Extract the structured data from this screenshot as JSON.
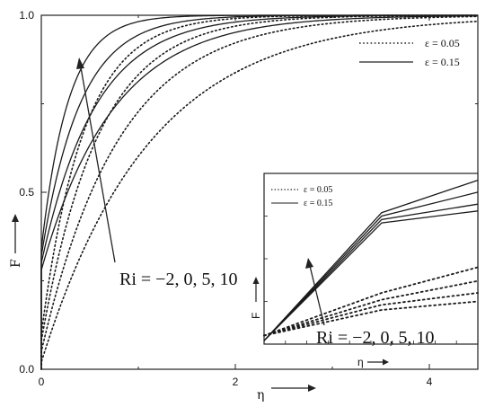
{
  "chart_data": [
    {
      "type": "line",
      "xlabel": "η",
      "ylabel": "F",
      "xlim": [
        0,
        4.5
      ],
      "ylim": [
        0,
        1.0
      ],
      "xticks": [
        "0",
        "2",
        "4"
      ],
      "yticks": [
        "0.0",
        "0.5",
        "1.0"
      ],
      "legend": [
        {
          "name": "ε = 0.05",
          "style": "dotted"
        },
        {
          "name": "ε = 0.15",
          "style": "solid"
        }
      ],
      "legend_position": "top-right",
      "annotation": "Ri = −2, 0, 5, 10",
      "curve_model": "F = 1 - (1 - F0) * exp(-k * eta)",
      "series": [
        {
          "name": "ε = 0.05",
          "style": "dotted",
          "Ri": -2,
          "F0": 0.02,
          "k": 0.9
        },
        {
          "name": "ε = 0.05",
          "style": "dotted",
          "Ri": 0,
          "F0": 0.05,
          "k": 1.25
        },
        {
          "name": "ε = 0.05",
          "style": "dotted",
          "Ri": 5,
          "F0": 0.08,
          "k": 1.7
        },
        {
          "name": "ε = 0.05",
          "style": "dotted",
          "Ri": 10,
          "F0": 0.1,
          "k": 2.3
        },
        {
          "name": "ε = 0.15",
          "style": "solid",
          "Ri": -2,
          "F0": 0.28,
          "k": 1.35
        },
        {
          "name": "ε = 0.15",
          "style": "solid",
          "Ri": 0,
          "F0": 0.3,
          "k": 1.8
        },
        {
          "name": "ε = 0.15",
          "style": "solid",
          "Ri": 5,
          "F0": 0.32,
          "k": 2.5
        },
        {
          "name": "ε = 0.15",
          "style": "solid",
          "Ri": 10,
          "F0": 0.34,
          "k": 3.6
        }
      ]
    },
    {
      "type": "line",
      "xlabel": "η",
      "ylabel": "F",
      "legend": [
        {
          "name": "ε = 0.05",
          "style": "dotted"
        },
        {
          "name": "ε = 0.15",
          "style": "solid"
        }
      ],
      "legend_position": "top-left",
      "annotation": "Ri = −2, 0, 5, 10",
      "xlim": [
        0,
        1
      ],
      "ylim": [
        0,
        1
      ],
      "series": [
        {
          "name": "ε = 0.15",
          "style": "solid",
          "x": [
            0,
            0.55,
            1
          ],
          "y": [
            0.02,
            0.77,
            0.96
          ]
        },
        {
          "name": "ε = 0.15",
          "style": "solid",
          "x": [
            0,
            0.55,
            1
          ],
          "y": [
            0.02,
            0.75,
            0.89
          ]
        },
        {
          "name": "ε = 0.15",
          "style": "solid",
          "x": [
            0,
            0.55,
            1
          ],
          "y": [
            0.02,
            0.73,
            0.82
          ]
        },
        {
          "name": "ε = 0.15",
          "style": "solid",
          "x": [
            0,
            0.55,
            1
          ],
          "y": [
            0.02,
            0.71,
            0.78
          ]
        },
        {
          "name": "ε = 0.05",
          "style": "dotted",
          "x": [
            0,
            0.55,
            1
          ],
          "y": [
            0.05,
            0.3,
            0.45
          ]
        },
        {
          "name": "ε = 0.05",
          "style": "dotted",
          "x": [
            0,
            0.55,
            1
          ],
          "y": [
            0.05,
            0.26,
            0.37
          ]
        },
        {
          "name": "ε = 0.05",
          "style": "dotted",
          "x": [
            0,
            0.55,
            1
          ],
          "y": [
            0.05,
            0.23,
            0.3
          ]
        },
        {
          "name": "ε = 0.05",
          "style": "dotted",
          "x": [
            0,
            0.55,
            1
          ],
          "y": [
            0.05,
            0.2,
            0.25
          ]
        }
      ]
    }
  ]
}
